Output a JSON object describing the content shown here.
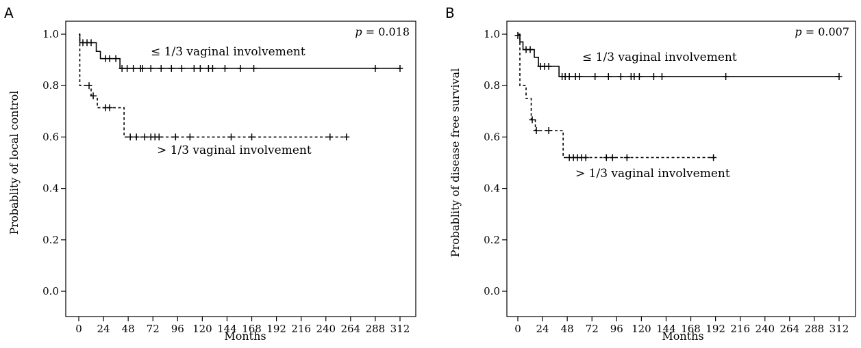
{
  "chart_data": [
    {
      "panel": "A",
      "type": "line",
      "title": "",
      "xlabel": "Months",
      "ylabel": "Probablity of local control",
      "xlim": [
        0,
        312
      ],
      "ylim": [
        0,
        1
      ],
      "xticks": [
        0,
        24,
        48,
        72,
        96,
        120,
        144,
        168,
        192,
        216,
        240,
        264,
        288,
        312
      ],
      "yticks": [
        0.0,
        0.2,
        0.4,
        0.6,
        0.8,
        1.0
      ],
      "ytick_labels": [
        "0.0",
        "0.2",
        "0.4",
        "0.6",
        "0.8",
        "1.0"
      ],
      "grid": false,
      "p_label": "p",
      "p_value": " = 0.018",
      "series": [
        {
          "label": "≤ 1/3 vaginal involvement",
          "style": "solid",
          "steps": [
            [
              0,
              1.0
            ],
            [
              1,
              0.967
            ],
            [
              17,
              0.933
            ],
            [
              21,
              0.905
            ],
            [
              40,
              0.867
            ],
            [
              312,
              0.867
            ]
          ],
          "censored": [
            [
              4,
              0.967
            ],
            [
              8,
              0.967
            ],
            [
              12,
              0.967
            ],
            [
              26,
              0.905
            ],
            [
              30,
              0.905
            ],
            [
              36,
              0.905
            ],
            [
              42,
              0.867
            ],
            [
              47,
              0.867
            ],
            [
              53,
              0.867
            ],
            [
              60,
              0.867
            ],
            [
              62,
              0.867
            ],
            [
              70,
              0.867
            ],
            [
              80,
              0.867
            ],
            [
              90,
              0.867
            ],
            [
              100,
              0.867
            ],
            [
              112,
              0.867
            ],
            [
              118,
              0.867
            ],
            [
              126,
              0.867
            ],
            [
              130,
              0.867
            ],
            [
              142,
              0.867
            ],
            [
              157,
              0.867
            ],
            [
              170,
              0.867
            ],
            [
              288,
              0.867
            ],
            [
              312,
              0.867
            ]
          ]
        },
        {
          "label": "> 1/3 vaginal involvement",
          "style": "dashed",
          "steps": [
            [
              0,
              1.0
            ],
            [
              1,
              0.8
            ],
            [
              12,
              0.76
            ],
            [
              18,
              0.714
            ],
            [
              44,
              0.6
            ],
            [
              260,
              0.6
            ]
          ],
          "censored": [
            [
              10,
              0.8
            ],
            [
              14,
              0.76
            ],
            [
              26,
              0.714
            ],
            [
              30,
              0.714
            ],
            [
              50,
              0.6
            ],
            [
              56,
              0.6
            ],
            [
              64,
              0.6
            ],
            [
              70,
              0.6
            ],
            [
              74,
              0.6
            ],
            [
              78,
              0.6
            ],
            [
              94,
              0.6
            ],
            [
              108,
              0.6
            ],
            [
              148,
              0.6
            ],
            [
              168,
              0.6
            ],
            [
              244,
              0.6
            ],
            [
              260,
              0.6
            ]
          ]
        }
      ]
    },
    {
      "panel": "B",
      "type": "line",
      "title": "",
      "xlabel": "Months",
      "ylabel": "Probablity of disease free survival",
      "xlim": [
        0,
        312
      ],
      "ylim": [
        0,
        1
      ],
      "xticks": [
        0,
        24,
        48,
        72,
        96,
        120,
        144,
        168,
        192,
        216,
        240,
        264,
        288,
        312
      ],
      "yticks": [
        0.0,
        0.2,
        0.4,
        0.6,
        0.8,
        1.0
      ],
      "ytick_labels": [
        "0.0",
        "0.2",
        "0.4",
        "0.6",
        "0.8",
        "1.0"
      ],
      "grid": false,
      "p_label": "p",
      "p_value": " = 0.007",
      "series": [
        {
          "label": "≤ 1/3 vaginal involvement",
          "style": "solid",
          "steps": [
            [
              0,
              1.0
            ],
            [
              2,
              0.97
            ],
            [
              5,
              0.94
            ],
            [
              16,
              0.91
            ],
            [
              20,
              0.875
            ],
            [
              40,
              0.835
            ],
            [
              312,
              0.835
            ]
          ],
          "censored": [
            [
              0,
              0.995
            ],
            [
              8,
              0.94
            ],
            [
              12,
              0.94
            ],
            [
              22,
              0.875
            ],
            [
              26,
              0.875
            ],
            [
              30,
              0.875
            ],
            [
              43,
              0.835
            ],
            [
              46,
              0.835
            ],
            [
              50,
              0.835
            ],
            [
              56,
              0.835
            ],
            [
              60,
              0.835
            ],
            [
              75,
              0.835
            ],
            [
              88,
              0.835
            ],
            [
              100,
              0.835
            ],
            [
              110,
              0.835
            ],
            [
              113,
              0.835
            ],
            [
              118,
              0.835
            ],
            [
              132,
              0.835
            ],
            [
              140,
              0.835
            ],
            [
              202,
              0.835
            ],
            [
              312,
              0.835
            ]
          ]
        },
        {
          "label": "> 1/3 vaginal involvement",
          "style": "dashed",
          "steps": [
            [
              0,
              1.0
            ],
            [
              2,
              0.8
            ],
            [
              8,
              0.75
            ],
            [
              13,
              0.667
            ],
            [
              17,
              0.625
            ],
            [
              44,
              0.52
            ],
            [
              190,
              0.52
            ]
          ],
          "censored": [
            [
              14,
              0.667
            ],
            [
              18,
              0.625
            ],
            [
              30,
              0.625
            ],
            [
              50,
              0.52
            ],
            [
              54,
              0.52
            ],
            [
              58,
              0.52
            ],
            [
              62,
              0.52
            ],
            [
              66,
              0.52
            ],
            [
              86,
              0.52
            ],
            [
              92,
              0.52
            ],
            [
              106,
              0.52
            ],
            [
              190,
              0.52
            ]
          ]
        }
      ]
    }
  ]
}
